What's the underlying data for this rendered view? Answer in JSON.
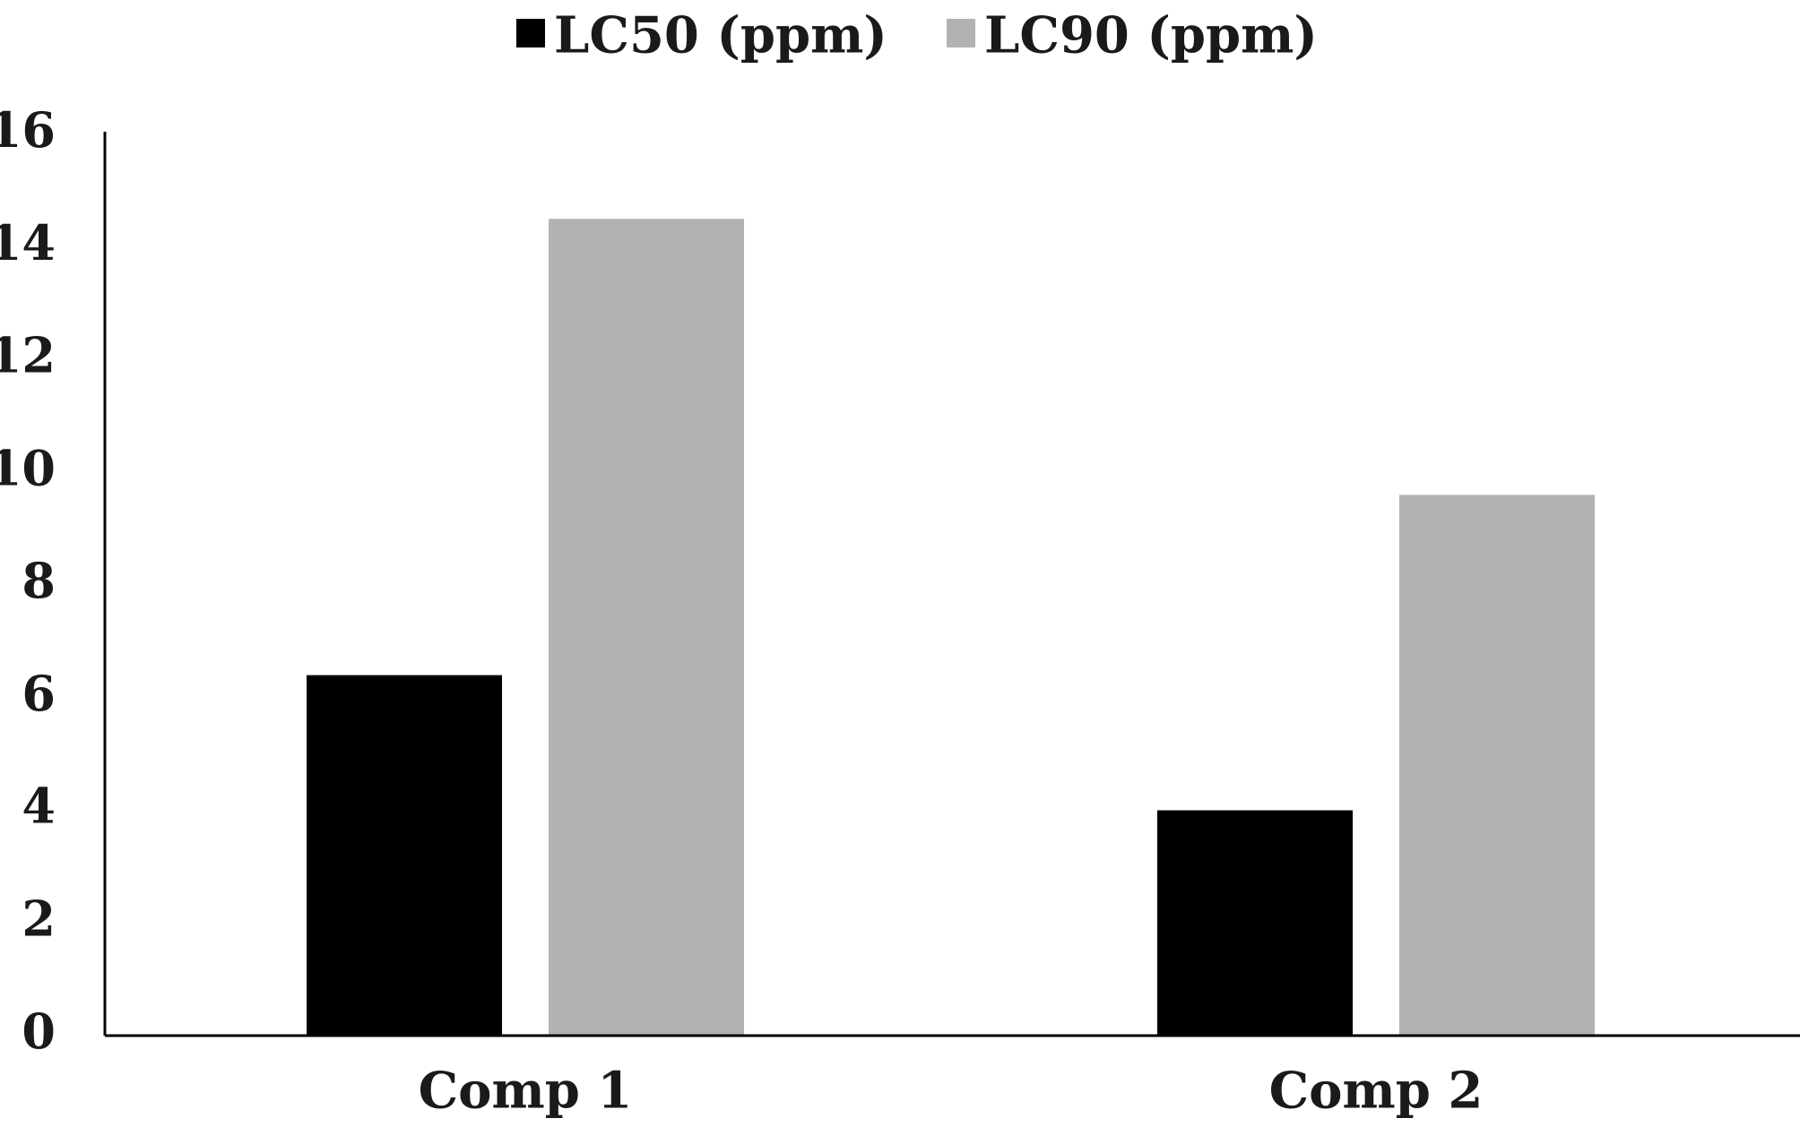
{
  "chart_data": {
    "type": "bar",
    "categories": [
      "Comp 1",
      "Comp 2"
    ],
    "series": [
      {
        "name": "LC50 (ppm)",
        "values": [
          6.4,
          4.0
        ],
        "color": "#000000"
      },
      {
        "name": "LC90 (ppm)",
        "values": [
          14.5,
          9.6
        ],
        "color": "#b2b2b2"
      }
    ],
    "ylim": [
      0,
      16
    ],
    "yticks": [
      0,
      2,
      4,
      6,
      8,
      10,
      12,
      14,
      16
    ],
    "grid": false,
    "legend_position": "top-center",
    "title": "",
    "xlabel": "",
    "ylabel": ""
  }
}
